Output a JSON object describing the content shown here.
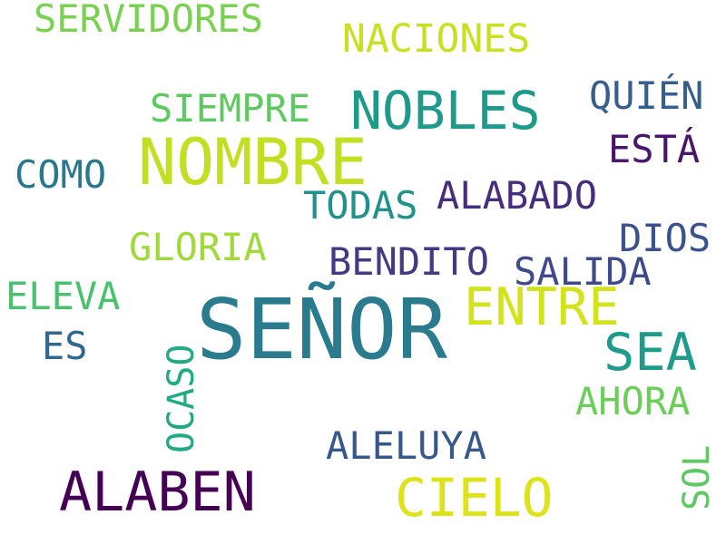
{
  "words": [
    {
      "text": "SEÑOR",
      "color": "#2a7b8e"
    },
    {
      "text": "NOMBRE",
      "color": "#c2df23"
    },
    {
      "text": "NOBLES",
      "color": "#1f9a8a"
    },
    {
      "text": "SERVIDORES",
      "color": "#7ad151"
    },
    {
      "text": "NACIONES",
      "color": "#c8e020"
    },
    {
      "text": "SIEMPRE",
      "color": "#5ec962"
    },
    {
      "text": "QUIÉN",
      "color": "#355f8d"
    },
    {
      "text": "ESTÁ",
      "color": "#48186a"
    },
    {
      "text": "COMO",
      "color": "#2a788e"
    },
    {
      "text": "TODAS",
      "color": "#21918c"
    },
    {
      "text": "ALABADO",
      "color": "#472d7b"
    },
    {
      "text": "DIOS",
      "color": "#3b528b"
    },
    {
      "text": "GLORIA",
      "color": "#a0da39"
    },
    {
      "text": "BENDITO",
      "color": "#443983"
    },
    {
      "text": "SALIDA",
      "color": "#3e4a89"
    },
    {
      "text": "ELEVA",
      "color": "#4ac16d"
    },
    {
      "text": "ENTRE",
      "color": "#d2e21b"
    },
    {
      "text": "ES",
      "color": "#31688e"
    },
    {
      "text": "SEA",
      "color": "#1e9b8a"
    },
    {
      "text": "OCASO",
      "color": "#23a983"
    },
    {
      "text": "AHORA",
      "color": "#6ccd5a"
    },
    {
      "text": "ALELUYA",
      "color": "#38588c"
    },
    {
      "text": "SOL",
      "color": "#5ec962"
    },
    {
      "text": "ALABEN",
      "color": "#440154"
    },
    {
      "text": "CIELO",
      "color": "#dde318"
    }
  ]
}
